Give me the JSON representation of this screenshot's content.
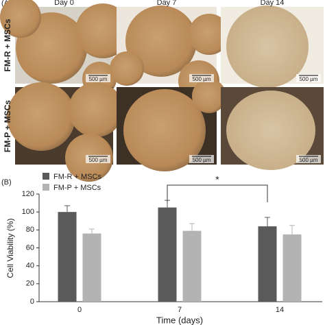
{
  "panel_a": {
    "label": "(A)",
    "columns": [
      "Day 0",
      "Day 7",
      "Day 14"
    ],
    "rows": [
      "FM-R + MSCs",
      "FM-P + MSCs"
    ],
    "scale_bars": [
      "500 µm",
      "500 µm",
      "500 µm",
      "500 µm",
      "500 µm",
      "500 µm"
    ]
  },
  "panel_b_label": "(B)",
  "chart_data": {
    "type": "bar",
    "x_label": "Time (days)",
    "y_label": "Cell Viability (%)",
    "categories": [
      "0",
      "7",
      "14"
    ],
    "series": [
      {
        "name": "FM-R + MSCs",
        "color": "#5a5a5a",
        "values": [
          100,
          105,
          84
        ],
        "errors": [
          7,
          8,
          10
        ]
      },
      {
        "name": "FM-P + MSCs",
        "color": "#b3b3b3",
        "values": [
          76,
          79,
          75
        ],
        "errors": [
          5,
          8,
          10
        ]
      }
    ],
    "annotation": "*",
    "ylim": [
      0,
      120
    ],
    "yticks": [
      0,
      20,
      40,
      60,
      80,
      100,
      120
    ],
    "legend": "top-left"
  }
}
